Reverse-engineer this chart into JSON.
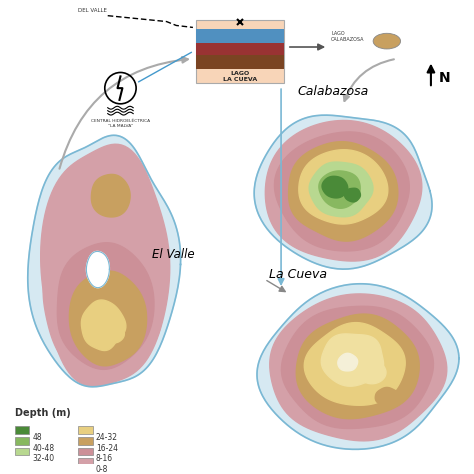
{
  "bg_color": "#ffffff",
  "lake_border_color": "#7ab8d4",
  "label_color": "#333333",
  "colors": {
    "pink_outer": "#d4a0a8",
    "pink_mid": "#cc9098",
    "brown": "#b87850",
    "tan": "#c8a060",
    "yellow": "#e8cf80",
    "lt_yellow": "#f0e0a0",
    "lt_green": "#b8d890",
    "med_green": "#88b860",
    "dk_green": "#4a8a38",
    "blue_water": "#4488bb",
    "red_water": "#aa3333",
    "brown_water": "#884422"
  },
  "labels": {
    "el_valle": "El Valle",
    "calabazosa": "Calabazosa",
    "la_cueva": "La Cueva"
  },
  "legend_title": "Depth (m)",
  "legend_items_col1": [
    {
      "label": "48",
      "color": "#4a8a38"
    },
    {
      "label": "40-48",
      "color": "#88b860"
    },
    {
      "label": "32-40",
      "color": "#b8d890"
    }
  ],
  "legend_items_col2": [
    {
      "label": "24-32",
      "color": "#e8cf80"
    },
    {
      "label": "16-24",
      "color": "#c8a060"
    },
    {
      "label": "8-16",
      "color": "#cc9098"
    },
    {
      "label": "0-8",
      "color": "#d4a0a8"
    }
  ]
}
